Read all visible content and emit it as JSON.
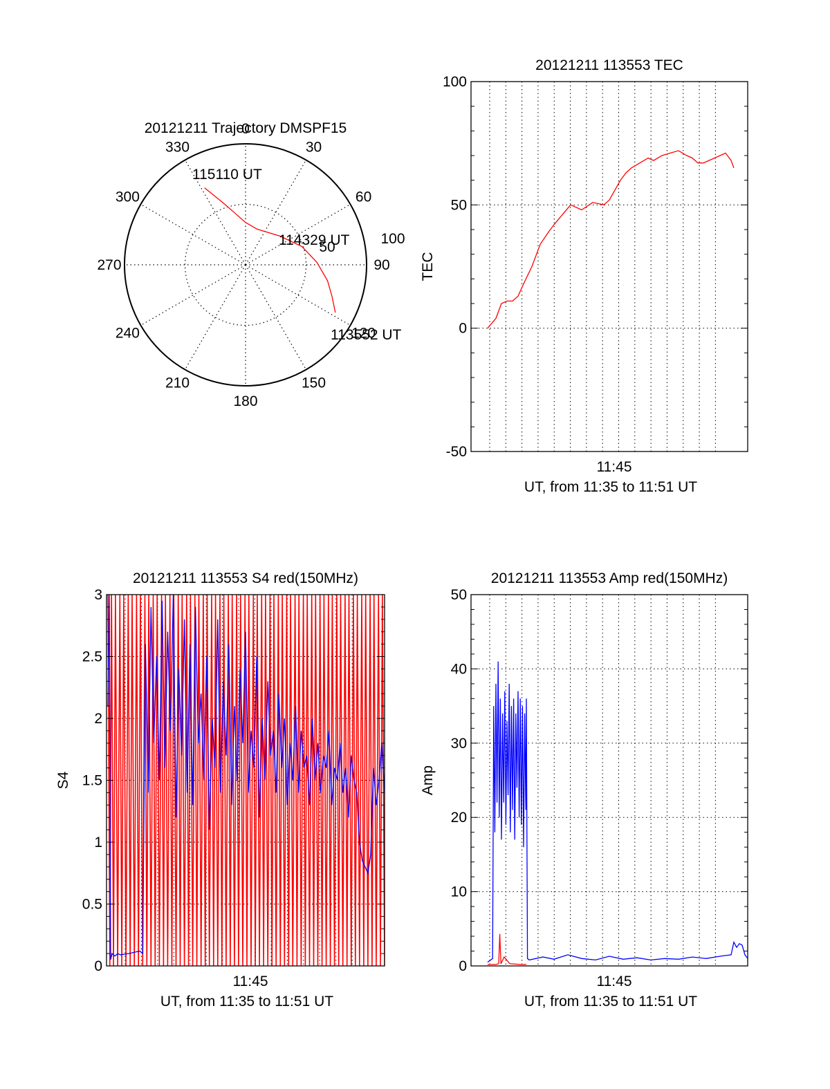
{
  "colors": {
    "red": "#ff0000",
    "blue": "#0000ff",
    "axis": "#000000",
    "grid": "#000000"
  },
  "chart_data": [
    {
      "type": "polar",
      "title": "20121211 Trajectory DMSPF15",
      "angle_ticks": [
        "0",
        "30",
        "60",
        "90",
        "120",
        "150",
        "180",
        "210",
        "240",
        "270",
        "300",
        "330"
      ],
      "angle_direction": "clockwise, 0 at top",
      "radial_ticks": [
        "50",
        "100"
      ],
      "rlim": [
        0,
        100
      ],
      "grid": true,
      "series": [
        {
          "color": "red",
          "points": [
            {
              "az": 332,
              "el": 28
            },
            {
              "az": 336,
              "el": 38
            },
            {
              "az": 341,
              "el": 47
            },
            {
              "az": 348,
              "el": 56
            },
            {
              "az": 360,
              "el": 65
            },
            {
              "az": 18,
              "el": 69
            },
            {
              "az": 50,
              "el": 63
            },
            {
              "az": 72,
              "el": 51
            },
            {
              "az": 88,
              "el": 41
            },
            {
              "az": 101,
              "el": 31
            },
            {
              "az": 110,
              "el": 24
            },
            {
              "az": 118,
              "el": 16
            }
          ]
        }
      ],
      "annotations": [
        "115110 UT",
        "114329 UT",
        "113552 UT"
      ]
    },
    {
      "type": "line",
      "title": "20121211 113553 TEC",
      "xlabel": "UT, from 11:35 to 11:51 UT",
      "ylabel": "TEC",
      "x_tick_labels": [
        "11:45"
      ],
      "ylim": [
        -50,
        100
      ],
      "y_ticks": [
        "-50",
        "0",
        "50",
        "100"
      ],
      "xlim": [
        0,
        1000
      ],
      "grid": true,
      "series": [
        {
          "color": "red",
          "x": [
            60,
            90,
            110,
            130,
            150,
            170,
            190,
            220,
            250,
            280,
            300,
            330,
            360,
            400,
            440,
            480,
            500,
            540,
            560,
            580,
            610,
            640,
            660,
            690,
            720,
            750,
            780,
            800,
            820,
            840,
            860,
            880,
            900,
            920,
            940,
            950
          ],
          "y": [
            0,
            4,
            10,
            11,
            11,
            13,
            18,
            25,
            34,
            39,
            42,
            46,
            50,
            48,
            51,
            50,
            52,
            60,
            63,
            65,
            67,
            69,
            68,
            70,
            71,
            72,
            70,
            69,
            67,
            67,
            68,
            69,
            70,
            71,
            68,
            65
          ]
        }
      ]
    },
    {
      "type": "line",
      "title": "20121211 113553 S4 red(150MHz)",
      "xlabel": "UT, from 11:35 to 11:51 UT",
      "ylabel": "S4",
      "x_tick_labels": [
        "11:45"
      ],
      "ylim": [
        0,
        3
      ],
      "y_ticks": [
        "0",
        "0.5",
        "1",
        "1.5",
        "2",
        "2.5",
        "3"
      ],
      "xlim": [
        0,
        1000
      ],
      "grid": true,
      "series": [
        {
          "color": "blue",
          "x": [
            5,
            10,
            15,
            20,
            30,
            40,
            50,
            80,
            100,
            120,
            130,
            140,
            150,
            160,
            170,
            180,
            190,
            200,
            210,
            220,
            230,
            240,
            250,
            260,
            270,
            280,
            290,
            300,
            310,
            320,
            330,
            340,
            350,
            360,
            370,
            380,
            390,
            400,
            410,
            420,
            430,
            440,
            450,
            460,
            470,
            480,
            490,
            500,
            510,
            520,
            530,
            540,
            550,
            560,
            570,
            580,
            590,
            600,
            610,
            620,
            630,
            640,
            650,
            660,
            670,
            680,
            690,
            700,
            710,
            720,
            730,
            740,
            750,
            760,
            770,
            780,
            790,
            800,
            810,
            820,
            830,
            840,
            850,
            860,
            870,
            880,
            890,
            900,
            910,
            920,
            930,
            940,
            950,
            960,
            970,
            980,
            990,
            1000
          ],
          "y": [
            2.1,
            3.0,
            0.05,
            0.1,
            0.08,
            0.1,
            0.09,
            0.1,
            0.11,
            0.12,
            0.1,
            2.6,
            1.4,
            2.9,
            1.8,
            2.5,
            1.5,
            2.95,
            1.6,
            2.7,
            1.9,
            3.0,
            1.2,
            2.4,
            1.7,
            2.8,
            1.4,
            2.6,
            1.3,
            2.9,
            1.8,
            2.2,
            1.5,
            2.5,
            1.1,
            2.0,
            1.6,
            2.8,
            1.4,
            2.3,
            1.7,
            2.6,
            1.3,
            2.1,
            1.5,
            2.4,
            1.8,
            2.7,
            1.4,
            1.9,
            1.6,
            2.5,
            1.2,
            2.0,
            1.5,
            2.3,
            1.7,
            1.9,
            1.4,
            2.2,
            1.6,
            2.0,
            1.3,
            1.8,
            1.5,
            2.1,
            1.4,
            1.9,
            1.6,
            1.7,
            1.3,
            2.0,
            1.5,
            1.8,
            1.4,
            1.7,
            1.6,
            1.9,
            1.3,
            1.6,
            1.5,
            1.8,
            1.4,
            1.6,
            1.2,
            1.7,
            1.5,
            1.4,
            1.0,
            0.85,
            0.8,
            0.75,
            0.9,
            1.6,
            1.3,
            1.5,
            1.8,
            1.4
          ]
        },
        {
          "color": "red",
          "note": "dense vertical spikes spanning 0 to 3",
          "x": [
            5,
            12,
            18,
            25,
            32,
            40,
            48,
            55,
            62,
            70,
            78,
            85,
            92,
            100,
            108,
            115,
            122,
            130,
            138,
            145,
            152,
            160,
            168,
            175,
            182,
            190,
            198,
            205,
            212,
            220,
            228,
            235,
            242,
            250,
            258,
            265,
            272,
            280,
            288,
            295,
            302,
            310,
            318,
            325,
            332,
            340,
            348,
            355,
            362,
            370,
            378,
            385,
            392,
            400,
            408,
            415,
            422,
            430,
            438,
            445,
            452,
            460,
            468,
            475,
            482,
            490,
            498,
            505,
            512,
            520,
            528,
            535,
            542,
            550,
            558,
            565,
            572,
            580,
            588,
            595,
            602,
            610,
            618,
            625,
            632,
            640,
            648,
            655,
            662,
            670,
            678,
            685,
            692,
            700,
            708,
            715,
            722,
            730,
            738,
            745,
            752,
            760,
            768,
            775,
            782,
            790,
            798,
            805,
            812,
            820,
            828,
            835,
            842,
            850,
            858,
            865,
            872,
            880,
            888,
            895,
            902,
            910,
            918,
            925,
            932,
            940,
            948,
            955,
            962,
            970,
            978,
            985,
            992,
            1000
          ],
          "y": [
            3,
            0,
            3,
            0,
            3,
            0,
            3,
            0,
            3,
            0,
            3,
            0,
            3,
            0,
            3,
            0,
            3,
            0,
            3,
            0,
            3,
            0,
            3,
            0,
            3,
            0,
            3,
            0,
            3,
            0,
            3,
            0,
            3,
            0,
            3,
            0,
            3,
            0,
            3,
            0,
            3,
            0,
            3,
            0,
            3,
            0,
            3,
            0,
            3,
            0,
            3,
            0,
            3,
            0,
            3,
            0,
            3,
            0,
            3,
            0,
            3,
            0,
            3,
            0,
            3,
            0,
            3,
            0,
            3,
            0,
            3,
            0,
            3,
            0,
            3,
            0,
            3,
            0,
            3,
            0,
            3,
            0,
            3,
            0,
            3,
            0,
            3,
            0,
            3,
            0,
            3,
            0,
            3,
            0,
            3,
            0,
            3,
            0,
            3,
            0,
            3,
            0,
            3,
            0,
            3,
            0,
            3,
            0,
            3,
            0,
            3,
            0,
            3,
            0,
            3,
            0,
            3,
            0,
            3,
            0,
            3,
            0,
            3,
            0,
            3,
            0,
            3,
            0,
            3,
            0,
            3,
            0,
            3,
            0
          ]
        }
      ]
    },
    {
      "type": "line",
      "title": "20121211 113553 Amp red(150MHz)",
      "xlabel": "UT, from 11:35 to 11:51 UT",
      "ylabel": "Amp",
      "x_tick_labels": [
        "11:45"
      ],
      "ylim": [
        0,
        50
      ],
      "y_ticks": [
        "0",
        "10",
        "20",
        "30",
        "40",
        "50"
      ],
      "xlim": [
        0,
        1000
      ],
      "grid": true,
      "series": [
        {
          "color": "blue",
          "x": [
            60,
            78,
            82,
            86,
            90,
            94,
            98,
            102,
            106,
            110,
            114,
            118,
            122,
            126,
            130,
            134,
            138,
            142,
            146,
            150,
            154,
            158,
            162,
            166,
            170,
            174,
            178,
            182,
            186,
            190,
            194,
            198,
            200,
            204,
            210,
            260,
            300,
            350,
            400,
            450,
            500,
            550,
            600,
            650,
            700,
            750,
            800,
            850,
            900,
            940,
            950,
            960,
            970,
            980,
            990,
            1000
          ],
          "y": [
            0.5,
            1,
            35,
            18,
            38,
            22,
            41,
            20,
            36,
            17,
            34,
            22,
            37,
            19,
            33,
            23,
            38,
            18,
            35,
            21,
            36,
            17,
            34,
            24,
            37,
            20,
            36,
            19,
            35,
            16,
            34,
            21,
            36,
            1,
            0.8,
            1.2,
            0.9,
            1.5,
            1.0,
            0.8,
            1.3,
            0.9,
            1.1,
            0.8,
            1.0,
            0.9,
            1.2,
            1.0,
            1.3,
            1.5,
            3.2,
            2.5,
            3.0,
            2.8,
            1.5,
            1.0
          ]
        },
        {
          "color": "red",
          "x": [
            60,
            90,
            100,
            104,
            108,
            120,
            140,
            180,
            200
          ],
          "y": [
            0.2,
            0.2,
            0.3,
            4.3,
            0.3,
            1.2,
            0.3,
            0.2,
            0.2
          ]
        }
      ]
    }
  ]
}
